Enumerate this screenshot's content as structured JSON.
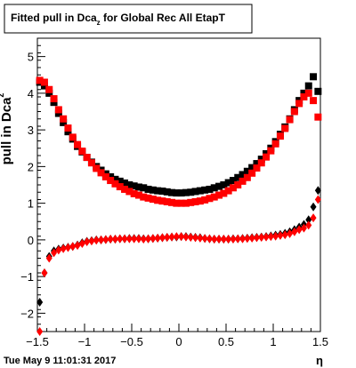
{
  "chart_data": {
    "type": "scatter",
    "title": "Fitted pull in Dca",
    "title_sub": "z",
    "title_rest": " for Global Rec All EtapT",
    "xlabel": "η",
    "ylabel": "pull in Dca",
    "ylabel_sub": "z",
    "xlim": [
      -1.5,
      1.5
    ],
    "ylim": [
      -2.5,
      5.5
    ],
    "xticks": [
      -1.5,
      -1,
      -0.5,
      0,
      0.5,
      1,
      1.5
    ],
    "xtick_labels": [
      "−1.5",
      "−1",
      "−0.5",
      "0",
      "0.5",
      "1",
      "1.5"
    ],
    "yticks": [
      -2,
      -1,
      0,
      1,
      2,
      3,
      4,
      5
    ],
    "ytick_labels": [
      "−2",
      "−1",
      "0",
      "1",
      "2",
      "3",
      "4",
      "5"
    ],
    "grid": false,
    "footer": "Tue May  9 11:01:31 2017",
    "series": [
      {
        "marker": "square",
        "color": "#000000",
        "x": [
          -1.475,
          -1.425,
          -1.375,
          -1.325,
          -1.275,
          -1.225,
          -1.175,
          -1.125,
          -1.075,
          -1.025,
          -0.975,
          -0.925,
          -0.875,
          -0.825,
          -0.775,
          -0.725,
          -0.675,
          -0.625,
          -0.575,
          -0.525,
          -0.475,
          -0.425,
          -0.375,
          -0.325,
          -0.275,
          -0.225,
          -0.175,
          -0.125,
          -0.075,
          -0.025,
          0.025,
          0.075,
          0.125,
          0.175,
          0.225,
          0.275,
          0.325,
          0.375,
          0.425,
          0.475,
          0.525,
          0.575,
          0.625,
          0.675,
          0.725,
          0.775,
          0.825,
          0.875,
          0.925,
          0.975,
          1.025,
          1.075,
          1.125,
          1.175,
          1.225,
          1.275,
          1.325,
          1.375,
          1.425,
          1.475
        ],
        "y": [
          4.3,
          4.2,
          4.0,
          3.75,
          3.45,
          3.2,
          2.95,
          2.75,
          2.55,
          2.4,
          2.25,
          2.12,
          2.0,
          1.9,
          1.8,
          1.72,
          1.65,
          1.6,
          1.55,
          1.5,
          1.47,
          1.44,
          1.42,
          1.38,
          1.36,
          1.34,
          1.33,
          1.31,
          1.29,
          1.28,
          1.28,
          1.29,
          1.3,
          1.32,
          1.34,
          1.36,
          1.38,
          1.42,
          1.46,
          1.5,
          1.56,
          1.62,
          1.7,
          1.78,
          1.87,
          1.97,
          2.08,
          2.2,
          2.35,
          2.5,
          2.68,
          2.88,
          3.08,
          3.3,
          3.55,
          3.8,
          4.0,
          4.2,
          4.45,
          4.05
        ]
      },
      {
        "marker": "square",
        "color": "#ff0000",
        "x": [
          -1.475,
          -1.425,
          -1.375,
          -1.325,
          -1.275,
          -1.225,
          -1.175,
          -1.125,
          -1.075,
          -1.025,
          -0.975,
          -0.925,
          -0.875,
          -0.825,
          -0.775,
          -0.725,
          -0.675,
          -0.625,
          -0.575,
          -0.525,
          -0.475,
          -0.425,
          -0.375,
          -0.325,
          -0.275,
          -0.225,
          -0.175,
          -0.125,
          -0.075,
          -0.025,
          0.025,
          0.075,
          0.125,
          0.175,
          0.225,
          0.275,
          0.325,
          0.375,
          0.425,
          0.475,
          0.525,
          0.575,
          0.625,
          0.675,
          0.725,
          0.775,
          0.825,
          0.875,
          0.925,
          0.975,
          1.025,
          1.075,
          1.125,
          1.175,
          1.225,
          1.275,
          1.325,
          1.375,
          1.425,
          1.475
        ],
        "y": [
          4.35,
          4.3,
          4.1,
          3.85,
          3.55,
          3.3,
          3.05,
          2.8,
          2.6,
          2.42,
          2.25,
          2.1,
          1.95,
          1.83,
          1.72,
          1.62,
          1.53,
          1.45,
          1.38,
          1.32,
          1.26,
          1.22,
          1.17,
          1.14,
          1.11,
          1.08,
          1.06,
          1.04,
          1.02,
          1.0,
          1.0,
          1.0,
          1.02,
          1.04,
          1.06,
          1.09,
          1.13,
          1.17,
          1.22,
          1.27,
          1.34,
          1.42,
          1.5,
          1.6,
          1.7,
          1.82,
          1.96,
          2.1,
          2.26,
          2.43,
          2.62,
          2.83,
          3.04,
          3.28,
          3.5,
          3.72,
          3.9,
          4.0,
          3.8,
          3.35
        ]
      },
      {
        "marker": "diamond",
        "color": "#000000",
        "x": [
          -1.475,
          -1.425,
          -1.375,
          -1.325,
          -1.275,
          -1.225,
          -1.175,
          -1.125,
          -1.075,
          -1.025,
          -0.975,
          -0.925,
          -0.875,
          -0.825,
          -0.775,
          -0.725,
          -0.675,
          -0.625,
          -0.575,
          -0.525,
          -0.475,
          -0.425,
          -0.375,
          -0.325,
          -0.275,
          -0.225,
          -0.175,
          -0.125,
          -0.075,
          -0.025,
          0.025,
          0.075,
          0.125,
          0.175,
          0.225,
          0.275,
          0.325,
          0.375,
          0.425,
          0.475,
          0.525,
          0.575,
          0.625,
          0.675,
          0.725,
          0.775,
          0.825,
          0.875,
          0.925,
          0.975,
          1.025,
          1.075,
          1.125,
          1.175,
          1.225,
          1.275,
          1.325,
          1.375,
          1.425,
          1.475
        ],
        "y": [
          -1.7,
          -0.9,
          -0.45,
          -0.3,
          -0.25,
          -0.22,
          -0.2,
          -0.18,
          -0.14,
          -0.08,
          -0.04,
          -0.02,
          0.0,
          0.0,
          0.01,
          0.02,
          0.02,
          0.03,
          0.03,
          0.04,
          0.04,
          0.04,
          0.03,
          0.03,
          0.04,
          0.05,
          0.06,
          0.07,
          0.08,
          0.08,
          0.09,
          0.09,
          0.08,
          0.07,
          0.06,
          0.04,
          0.03,
          0.02,
          0.02,
          0.02,
          0.02,
          0.03,
          0.03,
          0.04,
          0.05,
          0.06,
          0.07,
          0.08,
          0.09,
          0.11,
          0.13,
          0.15,
          0.18,
          0.22,
          0.28,
          0.35,
          0.42,
          0.55,
          0.9,
          1.35
        ]
      },
      {
        "marker": "diamond",
        "color": "#ff0000",
        "x": [
          -1.475,
          -1.425,
          -1.375,
          -1.325,
          -1.275,
          -1.225,
          -1.175,
          -1.125,
          -1.075,
          -1.025,
          -0.975,
          -0.925,
          -0.875,
          -0.825,
          -0.775,
          -0.725,
          -0.675,
          -0.625,
          -0.575,
          -0.525,
          -0.475,
          -0.425,
          -0.375,
          -0.325,
          -0.275,
          -0.225,
          -0.175,
          -0.125,
          -0.075,
          -0.025,
          0.025,
          0.075,
          0.125,
          0.175,
          0.225,
          0.275,
          0.325,
          0.375,
          0.425,
          0.475,
          0.525,
          0.575,
          0.625,
          0.675,
          0.725,
          0.775,
          0.825,
          0.875,
          0.925,
          0.975,
          1.025,
          1.075,
          1.125,
          1.175,
          1.225,
          1.275,
          1.325,
          1.375,
          1.425,
          1.475
        ],
        "y": [
          -2.5,
          -0.9,
          -0.5,
          -0.35,
          -0.28,
          -0.24,
          -0.21,
          -0.18,
          -0.15,
          -0.1,
          -0.05,
          -0.03,
          -0.01,
          0.0,
          0.01,
          0.02,
          0.02,
          0.03,
          0.03,
          0.03,
          0.03,
          0.03,
          0.02,
          0.03,
          0.04,
          0.05,
          0.06,
          0.07,
          0.08,
          0.09,
          0.09,
          0.08,
          0.07,
          0.06,
          0.05,
          0.04,
          0.03,
          0.02,
          0.02,
          0.02,
          0.02,
          0.02,
          0.03,
          0.03,
          0.04,
          0.05,
          0.06,
          0.07,
          0.08,
          0.09,
          0.1,
          0.12,
          0.14,
          0.17,
          0.22,
          0.28,
          0.32,
          0.4,
          0.6,
          1.1
        ]
      }
    ]
  }
}
